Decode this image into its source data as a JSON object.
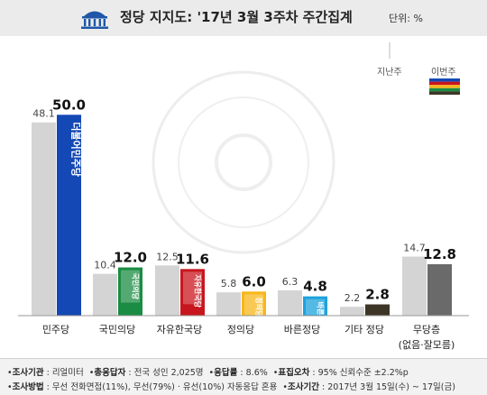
{
  "header": {
    "title": "정당 지지도: '17년 3월 3주차 주간집계",
    "unit": "단위: %"
  },
  "legend": {
    "previous": "지난주",
    "current": "이번주"
  },
  "colors": {
    "previous": "#d4d4d4",
    "current_minjoo": "#1448b4",
    "current_gukmin": "#1b8c43",
    "current_jayu": "#c8161e",
    "current_jeongui": "#f7b71c",
    "current_bareun": "#1da2dc",
    "current_other": "#3d3526",
    "current_none": "#6a6a6a",
    "baseline": "#999999"
  },
  "chart_data": {
    "type": "bar",
    "categories": [
      "민주당",
      "국민의당",
      "자유한국당",
      "정의당",
      "바른정당",
      "기타 정당",
      "무당층"
    ],
    "category_sublabels": [
      "",
      "",
      "",
      "",
      "",
      "",
      "(없음·잘모름)"
    ],
    "series": [
      {
        "name": "지난주",
        "values": [
          48.1,
          10.4,
          12.5,
          5.8,
          6.3,
          2.2,
          14.7
        ]
      },
      {
        "name": "이번주",
        "values": [
          50.0,
          12.0,
          11.6,
          6.0,
          4.8,
          2.8,
          12.8
        ]
      }
    ],
    "value_labels_prev": [
      "48.1",
      "10.4",
      "12.5",
      "5.8",
      "6.3",
      "2.2",
      "14.7"
    ],
    "value_labels_curr": [
      "50.0",
      "12.0",
      "11.6",
      "6.0",
      "4.8",
      "2.8",
      "12.8"
    ],
    "party_marks": [
      "더불어민주당",
      "국민의당",
      "자유한국당",
      "정의당",
      "바른정당",
      "",
      ""
    ],
    "ylim": [
      0,
      55
    ],
    "grid": false,
    "legend_position": "top-right"
  },
  "footer": {
    "row1": [
      {
        "label": "조사기관",
        "value": ": 리얼미터"
      },
      {
        "label": "총응답자",
        "value": ": 전국 성인 2,025명"
      },
      {
        "label": "응답률",
        "value": ": 8.6%"
      },
      {
        "label": "표집오차",
        "value": ": 95% 신뢰수준 ±2.2%p"
      }
    ],
    "row2": [
      {
        "label": "조사방법",
        "value": ": 무선 전화면접(11%), 무선(79%) · 유선(10%) 자동응답 혼용"
      },
      {
        "label": "조사기간",
        "value": ": 2017년 3월 15일(수) ~ 17일(금)"
      }
    ]
  }
}
